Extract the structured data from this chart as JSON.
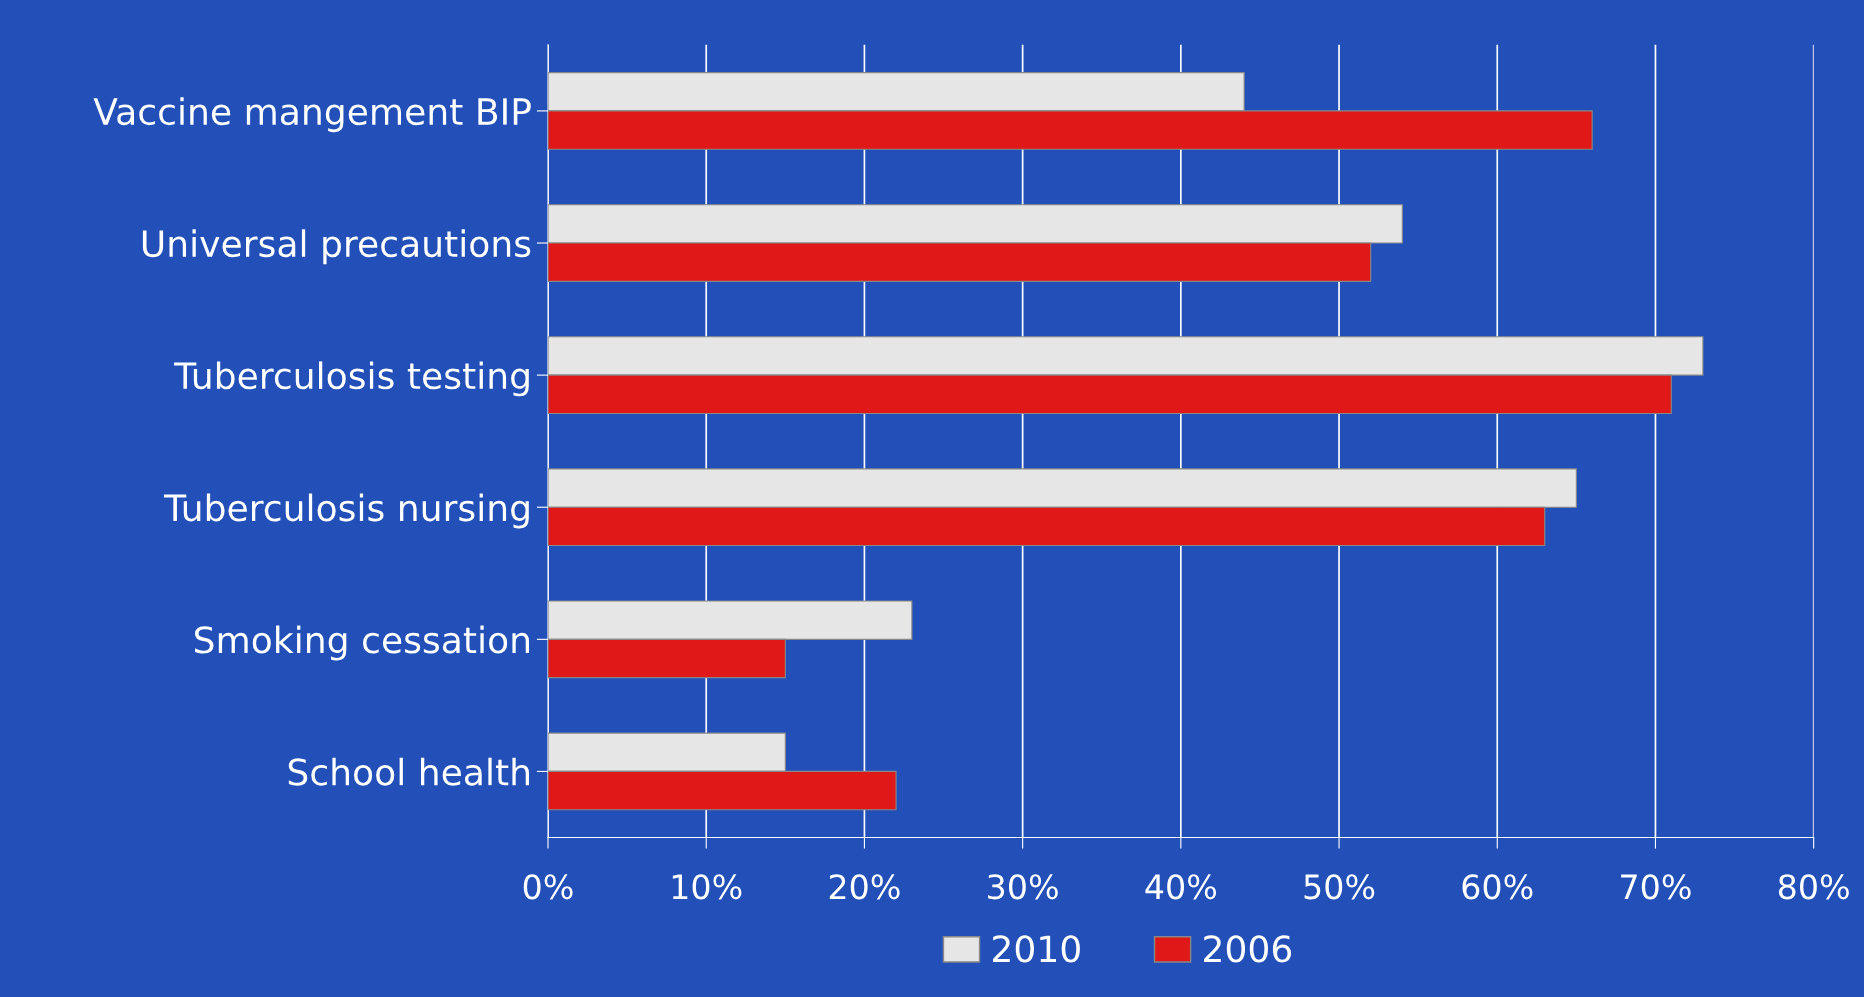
{
  "chart_data": {
    "type": "bar",
    "orientation": "horizontal",
    "categories": [
      "Vaccine mangement BIP",
      "Universal precautions",
      "Tuberculosis testing",
      "Tuberculosis nursing",
      "Smoking cessation",
      "School health"
    ],
    "series": [
      {
        "name": "2010",
        "color": "#e6e6e6",
        "values": [
          44,
          54,
          73,
          65,
          23,
          15
        ]
      },
      {
        "name": "2006",
        "color": "#e01818",
        "values": [
          66,
          52,
          71,
          63,
          15,
          22
        ]
      }
    ],
    "xlim": [
      0,
      80
    ],
    "xticks": [
      {
        "value": 0,
        "label": "0%"
      },
      {
        "value": 10,
        "label": "10%"
      },
      {
        "value": 20,
        "label": "20%"
      },
      {
        "value": 30,
        "label": "30%"
      },
      {
        "value": 40,
        "label": "40%"
      },
      {
        "value": 50,
        "label": "50%"
      },
      {
        "value": 60,
        "label": "60%"
      },
      {
        "value": 70,
        "label": "70%"
      },
      {
        "value": 80,
        "label": "80%"
      }
    ],
    "grid": "x",
    "legend": "bottom"
  }
}
